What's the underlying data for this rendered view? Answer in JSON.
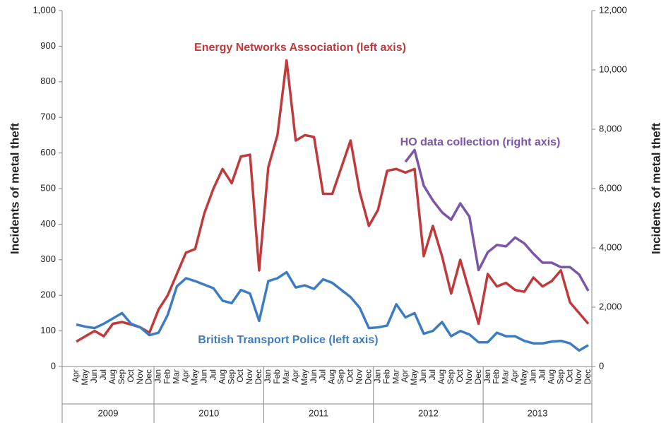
{
  "chart_data": {
    "type": "line",
    "y_label": "Incidents of metal theft",
    "y2_label": "Incidents of metal theft",
    "categories": [
      "Apr",
      "May",
      "Jun",
      "Jul",
      "Aug",
      "Sep",
      "Oct",
      "Nov",
      "Dec",
      "Jan",
      "Feb",
      "Mar",
      "Apr",
      "May",
      "Jun",
      "Jul",
      "Aug",
      "Sep",
      "Oct",
      "Nov",
      "Dec",
      "Jan",
      "Feb",
      "Mar",
      "Apr",
      "May",
      "Jun",
      "Jul",
      "Aug",
      "Sep",
      "Oct",
      "Nov",
      "Dec",
      "Jan",
      "Feb",
      "Mar",
      "Apr",
      "May",
      "Jun",
      "Jul",
      "Aug",
      "Sep",
      "Oct",
      "Nov",
      "Dec",
      "Jan",
      "Feb",
      "Mar",
      "Apr",
      "May",
      "Jun",
      "Jul",
      "Aug",
      "Sep",
      "Oct",
      "Nov",
      "Dec"
    ],
    "year_labels": [
      "2009",
      "2010",
      "2011",
      "2012",
      "2013"
    ],
    "series": [
      {
        "name": "Energy Networks Association (left axis)",
        "color": "#c0393b",
        "axis": "y",
        "values": [
          70,
          85,
          100,
          85,
          120,
          125,
          118,
          110,
          95,
          160,
          200,
          260,
          320,
          330,
          430,
          500,
          555,
          515,
          590,
          595,
          270,
          560,
          650,
          860,
          635,
          650,
          645,
          485,
          485,
          560,
          635,
          490,
          395,
          440,
          550,
          555,
          545,
          555,
          310,
          395,
          310,
          205,
          300,
          210,
          120,
          260,
          225,
          235,
          215,
          210,
          250,
          225,
          240,
          270,
          180,
          150,
          120
        ]
      },
      {
        "name": "British Transport Police (left axis)",
        "color": "#3d7cc2",
        "axis": "y",
        "values": [
          118,
          112,
          108,
          120,
          135,
          150,
          120,
          110,
          88,
          95,
          145,
          225,
          248,
          240,
          230,
          220,
          185,
          178,
          215,
          205,
          128,
          240,
          248,
          265,
          222,
          228,
          218,
          245,
          235,
          215,
          195,
          165,
          108,
          110,
          115,
          175,
          138,
          150,
          92,
          100,
          125,
          85,
          100,
          90,
          68,
          68,
          95,
          85,
          85,
          72,
          65,
          65,
          70,
          72,
          65,
          45,
          60
        ]
      },
      {
        "name": "HO data collection  (right axis)",
        "color": "#7b55a8",
        "axis": "y2",
        "values": [
          null,
          null,
          null,
          null,
          null,
          null,
          null,
          null,
          null,
          null,
          null,
          null,
          null,
          null,
          null,
          null,
          null,
          null,
          null,
          null,
          null,
          null,
          null,
          null,
          null,
          null,
          null,
          null,
          null,
          null,
          null,
          null,
          null,
          null,
          null,
          null,
          6900,
          7300,
          6100,
          5600,
          5200,
          4950,
          5500,
          5050,
          3250,
          3850,
          4100,
          4050,
          4350,
          4150,
          3800,
          3500,
          3500,
          3350,
          3350,
          3100,
          2550
        ]
      }
    ],
    "ylim": [
      0,
      1000
    ],
    "yticks": [
      0,
      100,
      200,
      300,
      400,
      500,
      600,
      700,
      800,
      900,
      {
        "value": 1000,
        "label": "1,000"
      }
    ],
    "y2lim": [
      0,
      12000
    ],
    "y2ticks": [
      0,
      {
        "value": 2000,
        "label": "2,000"
      },
      {
        "value": 4000,
        "label": "4,000"
      },
      {
        "value": 6000,
        "label": "6,000"
      },
      {
        "value": 8000,
        "label": "8,000"
      },
      {
        "value": 10000,
        "label": "10,000"
      },
      {
        "value": 12000,
        "label": "12,000"
      }
    ]
  }
}
